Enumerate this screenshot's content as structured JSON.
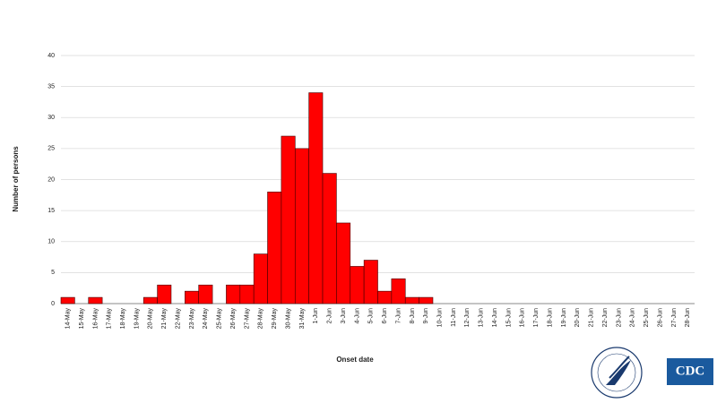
{
  "chart_data": {
    "type": "bar",
    "y_label": "Number of persons",
    "x_label": "Onset date",
    "categories": [
      "14-May",
      "15-May",
      "16-May",
      "17-May",
      "18-May",
      "19-May",
      "20-May",
      "21-May",
      "22-May",
      "23-May",
      "24-May",
      "25-May",
      "26-May",
      "27-May",
      "28-May",
      "29-May",
      "30-May",
      "31-May",
      "1-Jun",
      "2-Jun",
      "3-Jun",
      "4-Jun",
      "5-Jun",
      "6-Jun",
      "7-Jun",
      "8-Jun",
      "9-Jun",
      "10-Jun",
      "11-Jun",
      "12-Jun",
      "13-Jun",
      "14-Jun",
      "15-Jun",
      "16-Jun",
      "17-Jun",
      "18-Jun",
      "19-Jun",
      "20-Jun",
      "21-Jun",
      "22-Jun",
      "23-Jun",
      "24-Jun",
      "25-Jun",
      "26-Jun",
      "27-Jun",
      "28-Jun"
    ],
    "values": [
      1,
      0,
      1,
      0,
      0,
      0,
      1,
      3,
      0,
      2,
      3,
      0,
      3,
      3,
      8,
      18,
      27,
      25,
      34,
      21,
      13,
      6,
      7,
      2,
      4,
      1,
      1,
      0,
      0,
      0,
      0,
      0,
      0,
      0,
      0,
      0,
      0,
      0,
      0,
      0,
      0,
      0,
      0,
      0,
      0,
      0
    ],
    "color": "#ff0000",
    "ylim": [
      0,
      40
    ],
    "yticks": [
      0,
      5,
      10,
      15,
      20,
      25,
      30,
      35,
      40
    ],
    "grid": true,
    "logo_text": "CDC"
  }
}
